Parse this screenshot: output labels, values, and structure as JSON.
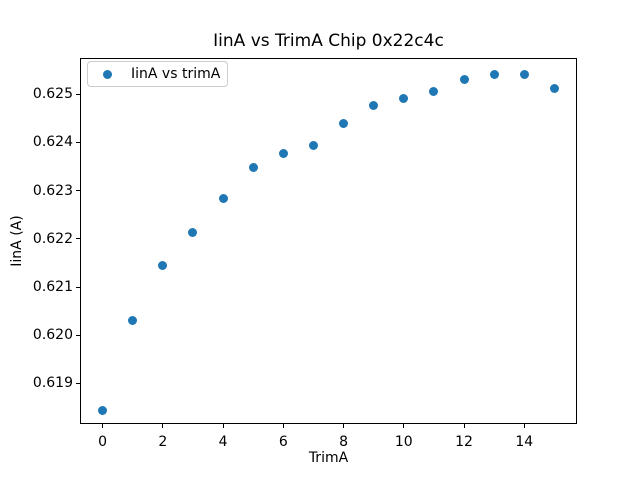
{
  "window": {
    "background_color": "#ffffff"
  },
  "chart_data": {
    "type": "scatter",
    "title": "IinA vs TrimA Chip 0x22c4c",
    "xlabel": "TrimA",
    "ylabel": "IinA (A)",
    "legend_position": "upper left",
    "legend": [
      {
        "label": "IinA vs trimA",
        "marker": "circle",
        "color": "#1f77b4"
      }
    ],
    "marker_color": "#1f77b4",
    "spine_color": "#000000",
    "x": [
      0,
      1,
      2,
      3,
      4,
      5,
      6,
      7,
      8,
      9,
      10,
      11,
      12,
      13,
      14,
      15
    ],
    "y": [
      0.61843,
      0.6203,
      0.62144,
      0.62214,
      0.62283,
      0.62347,
      0.62376,
      0.62393,
      0.62439,
      0.62476,
      0.6249,
      0.62506,
      0.6253,
      0.6254,
      0.6254,
      0.62511
    ],
    "xlim": [
      -0.75,
      15.75
    ],
    "ylim": [
      0.61816,
      0.62575
    ],
    "xticks": [
      0,
      2,
      4,
      6,
      8,
      10,
      12,
      14
    ],
    "xticklabels": [
      "0",
      "2",
      "4",
      "6",
      "8",
      "10",
      "12",
      "14"
    ],
    "yticks": [
      0.619,
      0.62,
      0.621,
      0.622,
      0.623,
      0.624,
      0.625
    ],
    "yticklabels": [
      "0.619",
      "0.620",
      "0.621",
      "0.622",
      "0.623",
      "0.624",
      "0.625"
    ],
    "grid": false
  }
}
